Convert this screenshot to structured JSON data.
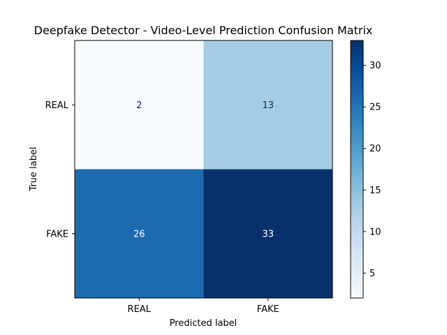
{
  "chart_data": {
    "type": "heatmap",
    "title": "Deepfake Detector - Video-Level Prediction Confusion Matrix",
    "xlabel": "Predicted label",
    "ylabel": "True label",
    "x_categories": [
      "REAL",
      "FAKE"
    ],
    "y_categories": [
      "REAL",
      "FAKE"
    ],
    "matrix": [
      [
        2,
        13
      ],
      [
        26,
        33
      ]
    ],
    "colormap": "Blues",
    "color_range": [
      2,
      33
    ],
    "colorbar_ticks": [
      5,
      10,
      15,
      20,
      25,
      30
    ]
  }
}
